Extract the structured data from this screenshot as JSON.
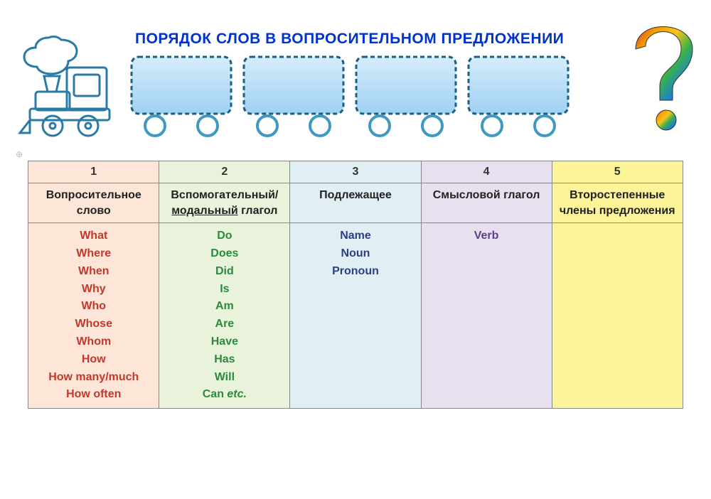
{
  "title": "ПОРЯДОК СЛОВ В ВОПРОСИТЕЛЬНОМ ПРЕДЛОЖЕНИИ",
  "columns": [
    {
      "num": "1",
      "header": "Вопросительное слово",
      "bg": "#fde6d8",
      "textColor": "#c0392b",
      "words": [
        "What",
        "Where",
        "When",
        "Why",
        "Who",
        "Whose",
        "Whom",
        "How",
        "How many/much",
        "How often"
      ]
    },
    {
      "num": "2",
      "header_html": "Вспомогательный/ <span class=\"under\">модальный</span> глагол",
      "bg": "#e9f3dc",
      "textColor": "#2b8a3e",
      "words_html": [
        "Do",
        "Does",
        "Did",
        "Is",
        "Am",
        "Are",
        "Have",
        "Has",
        "Will",
        "Can <span class=\"italic\">etc.</span>"
      ]
    },
    {
      "num": "3",
      "header": "Подлежащее",
      "bg": "#e1eef4",
      "textColor": "#2c3e86",
      "words": [
        "Name",
        "Noun",
        "Pronoun"
      ]
    },
    {
      "num": "4",
      "header": "Смысловой глагол",
      "bg": "#e7e1ef",
      "textColor": "#5b3f8a",
      "words": [
        "Verb"
      ]
    },
    {
      "num": "5",
      "header": "Второстепенные члены предложения",
      "bg": "#fdf49a",
      "textColor": "#333333",
      "words": []
    }
  ],
  "train": {
    "engine_color": "#3fa9d6",
    "engine_stroke": "#1b5f84",
    "wagon_fill_top": "#d6ecfb",
    "wagon_fill_bottom": "#9fd1f2",
    "wagon_stroke": "#1b5f84",
    "wheel_stroke": "#3f99c2"
  },
  "qmark_colors": [
    "#e03131",
    "#f59f00",
    "#fcc419",
    "#37b24d",
    "#1c7ed6",
    "#5f3dc4"
  ]
}
